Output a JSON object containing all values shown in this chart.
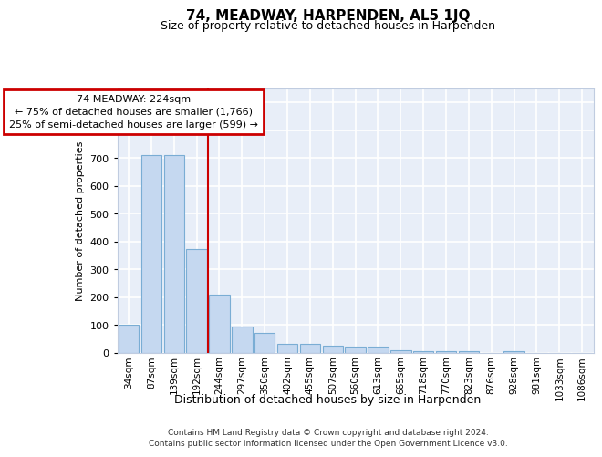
{
  "title": "74, MEADWAY, HARPENDEN, AL5 1JQ",
  "subtitle": "Size of property relative to detached houses in Harpenden",
  "xlabel": "Distribution of detached houses by size in Harpenden",
  "ylabel": "Number of detached properties",
  "categories": [
    "34sqm",
    "87sqm",
    "139sqm",
    "192sqm",
    "244sqm",
    "297sqm",
    "350sqm",
    "402sqm",
    "455sqm",
    "507sqm",
    "560sqm",
    "613sqm",
    "665sqm",
    "718sqm",
    "770sqm",
    "823sqm",
    "876sqm",
    "928sqm",
    "981sqm",
    "1033sqm",
    "1086sqm"
  ],
  "values": [
    100,
    710,
    710,
    375,
    210,
    95,
    72,
    33,
    33,
    25,
    22,
    22,
    10,
    8,
    8,
    5,
    0,
    8,
    0,
    0,
    0
  ],
  "bar_color": "#c5d8f0",
  "bar_edge_color": "#7aadd4",
  "red_line_x": 3.5,
  "ylim": [
    0,
    950
  ],
  "yticks": [
    0,
    100,
    200,
    300,
    400,
    500,
    600,
    700,
    800,
    900
  ],
  "annotation_line1": "74 MEADWAY: 224sqm",
  "annotation_line2": "← 75% of detached houses are smaller (1,766)",
  "annotation_line3": "25% of semi-detached houses are larger (599) →",
  "annotation_box_color": "#ffffff",
  "annotation_box_edge": "#cc0000",
  "footer_line1": "Contains HM Land Registry data © Crown copyright and database right 2024.",
  "footer_line2": "Contains public sector information licensed under the Open Government Licence v3.0.",
  "background_color": "#e8eef8",
  "grid_color": "#ffffff",
  "fig_bg": "#ffffff",
  "title_fontsize": 11,
  "subtitle_fontsize": 9,
  "ylabel_fontsize": 8,
  "xlabel_fontsize": 9,
  "tick_fontsize": 8,
  "xtick_fontsize": 7.5,
  "annotation_fontsize": 8,
  "footer_fontsize": 6.5
}
